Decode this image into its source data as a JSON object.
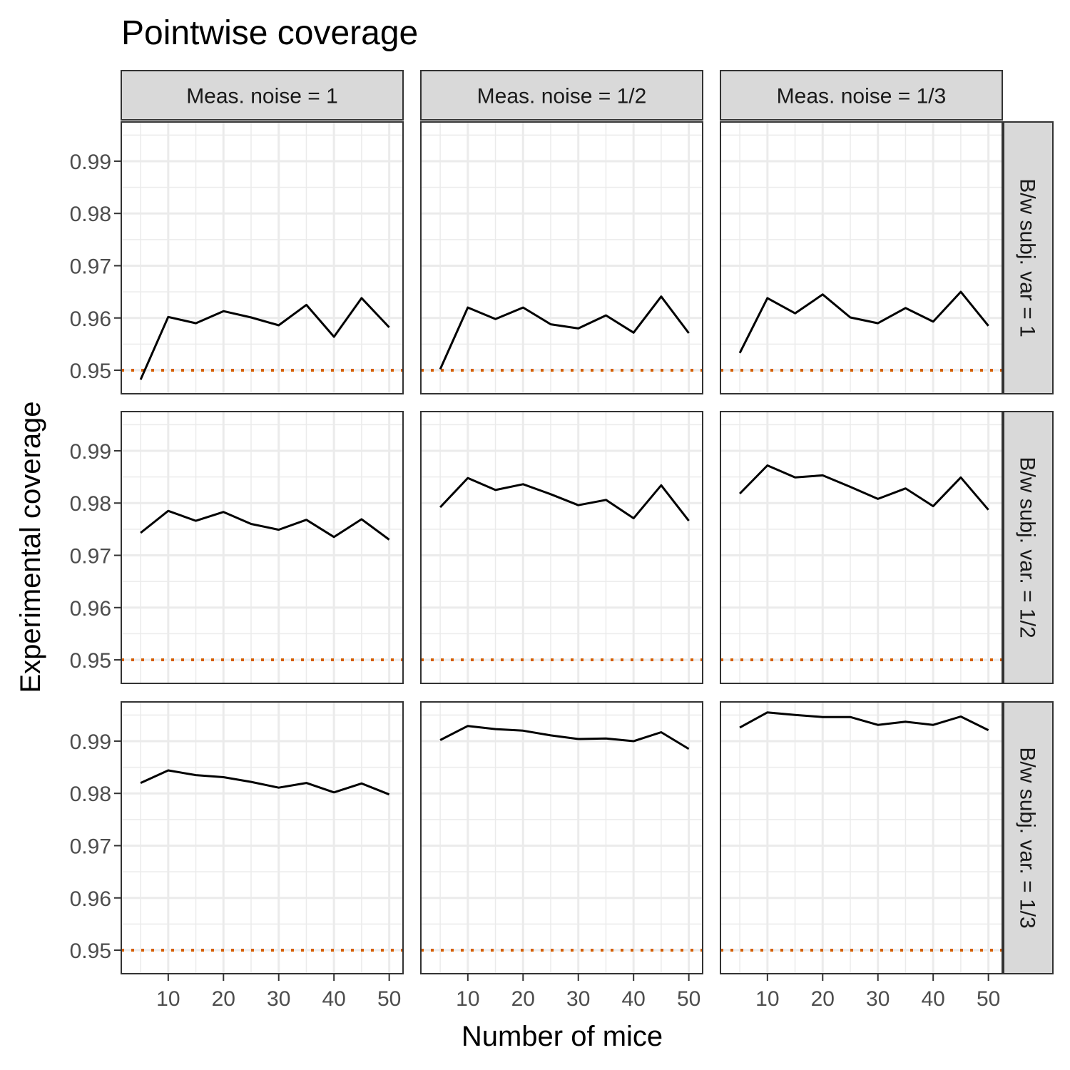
{
  "chart_data": {
    "type": "line",
    "title": "Pointwise coverage",
    "xlabel": "Number of mice",
    "ylabel": "Experimental coverage",
    "x": [
      5,
      10,
      15,
      20,
      25,
      30,
      35,
      40,
      45,
      50
    ],
    "xticks": [
      10,
      20,
      30,
      40,
      50
    ],
    "xlim": [
      1.5,
      52.5
    ],
    "yticks": [
      0.95,
      0.96,
      0.97,
      0.98,
      0.99
    ],
    "ytick_labels": [
      "0.95",
      "0.96",
      "0.97",
      "0.98",
      "0.99"
    ],
    "ylim": [
      0.9455,
      0.9975
    ],
    "grid": true,
    "reference_line": {
      "y": 0.95,
      "color": "#d55e00",
      "style": "dotted"
    },
    "line_color": "#000000",
    "col_facets": [
      "Meas. noise = 1",
      "Meas. noise = 1/2",
      "Meas. noise = 1/3"
    ],
    "row_facets": [
      "B/w subj. var = 1",
      "B/w subj. var. = 1/2",
      "B/w subj. var. = 1/3"
    ],
    "panels": [
      [
        {
          "values": [
            0.9482,
            0.9602,
            0.959,
            0.9613,
            0.9601,
            0.9586,
            0.9625,
            0.9564,
            0.9638,
            0.9582
          ]
        },
        {
          "values": [
            0.9502,
            0.962,
            0.9598,
            0.962,
            0.9588,
            0.958,
            0.9605,
            0.9572,
            0.9641,
            0.9571
          ]
        },
        {
          "values": [
            0.9533,
            0.9638,
            0.9609,
            0.9645,
            0.9601,
            0.959,
            0.9619,
            0.9593,
            0.965,
            0.9585
          ]
        }
      ],
      [
        {
          "values": [
            0.9743,
            0.9785,
            0.9766,
            0.9783,
            0.976,
            0.9749,
            0.9768,
            0.9735,
            0.9769,
            0.973
          ]
        },
        {
          "values": [
            0.9792,
            0.9848,
            0.9825,
            0.9836,
            0.9817,
            0.9796,
            0.9806,
            0.9771,
            0.9834,
            0.9766
          ]
        },
        {
          "values": [
            0.9818,
            0.9872,
            0.9849,
            0.9853,
            0.9831,
            0.9808,
            0.9828,
            0.9794,
            0.9849,
            0.9787
          ]
        }
      ],
      [
        {
          "values": [
            0.982,
            0.9844,
            0.9835,
            0.9831,
            0.9822,
            0.9811,
            0.982,
            0.9802,
            0.9819,
            0.9798
          ]
        },
        {
          "values": [
            0.9902,
            0.9929,
            0.9923,
            0.992,
            0.9911,
            0.9904,
            0.9905,
            0.99,
            0.9917,
            0.9885
          ]
        },
        {
          "values": [
            0.9926,
            0.9955,
            0.995,
            0.9946,
            0.9946,
            0.9931,
            0.9937,
            0.9931,
            0.9947,
            0.9921
          ]
        }
      ]
    ]
  }
}
